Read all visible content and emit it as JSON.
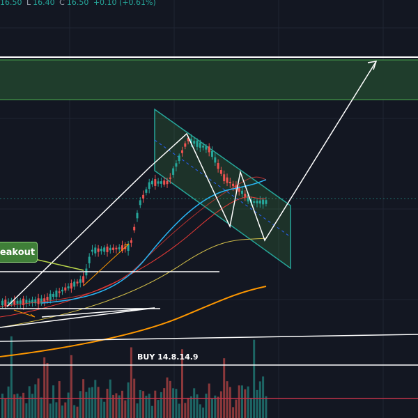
{
  "header": {
    "open": "16.50",
    "low_label": "L",
    "low": "16.40",
    "close_label": "C",
    "close": "16.50",
    "change": "+0.10 (+0.61%)"
  },
  "annotations": {
    "breakout": "eakout",
    "buy": "BUY 14.8.14.9"
  }
}
